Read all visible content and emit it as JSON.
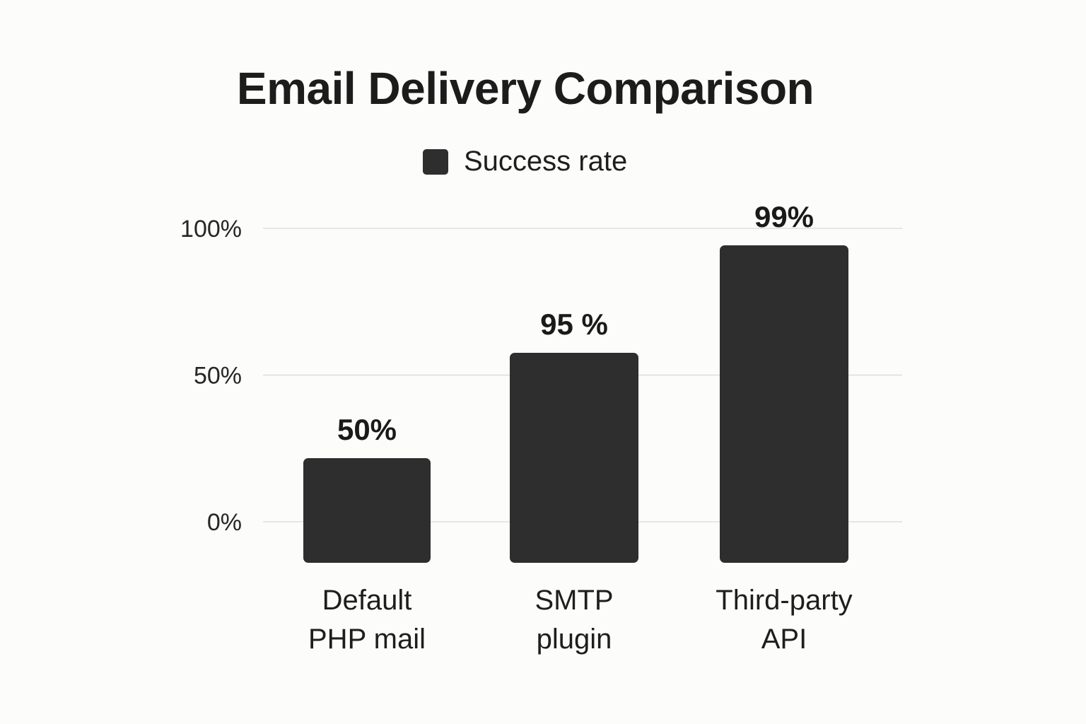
{
  "chart_data": {
    "type": "bar",
    "title": "Email Delivery Comparison",
    "legend": {
      "position": "top-center",
      "entries": [
        {
          "name": "Success rate",
          "color": "#2e2e2e"
        }
      ]
    },
    "categories": [
      [
        "Default",
        "PHP mail"
      ],
      [
        "SMTP",
        "plugin"
      ],
      [
        "Third-party",
        "API"
      ]
    ],
    "series": [
      {
        "name": "Success rate",
        "values": [
          50,
          95,
          99
        ],
        "data_labels": [
          "50%",
          "95 %",
          "99%"
        ],
        "color": "#2e2e2e"
      }
    ],
    "y_ticks": [
      {
        "value": 0,
        "label": "0%"
      },
      {
        "value": 50,
        "label": "50%"
      },
      {
        "value": 100,
        "label": "100%"
      }
    ],
    "ylim": [
      0,
      100
    ],
    "grid": true,
    "xlabel": "",
    "ylabel": ""
  }
}
